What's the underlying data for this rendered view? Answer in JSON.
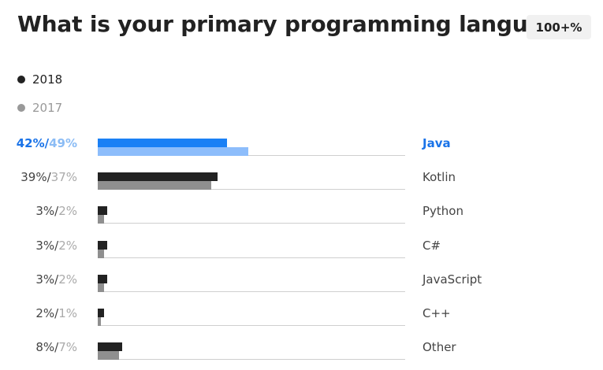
{
  "title": "What is your primary programming language?",
  "badge": "100+%",
  "legend": [
    {
      "name": "2018",
      "color": "#222222"
    },
    {
      "name": "2017",
      "color": "#999999"
    }
  ],
  "chart_data": {
    "type": "bar",
    "orientation": "horizontal",
    "title": "What is your primary programming language?",
    "xlim": [
      0,
      100
    ],
    "categories": [
      "Java",
      "Kotlin",
      "Python",
      "C#",
      "JavaScript",
      "C++",
      "Other"
    ],
    "highlight": "Java",
    "labels": [
      {
        "v2018": "42%",
        "v2017": "49%"
      },
      {
        "v2018": "39%",
        "v2017": "37%"
      },
      {
        "v2018": "3%",
        "v2017": "2%"
      },
      {
        "v2018": "3%",
        "v2017": "2%"
      },
      {
        "v2018": "3%",
        "v2017": "2%"
      },
      {
        "v2018": "2%",
        "v2017": "1%"
      },
      {
        "v2018": "8%",
        "v2017": "7%"
      }
    ],
    "series": [
      {
        "name": "2018",
        "color": "#222222",
        "values": [
          42,
          39,
          3,
          3,
          3,
          2,
          8
        ]
      },
      {
        "name": "2017",
        "color": "#8f8f8f",
        "values": [
          49,
          37,
          2,
          2,
          2,
          1,
          7
        ]
      }
    ]
  }
}
